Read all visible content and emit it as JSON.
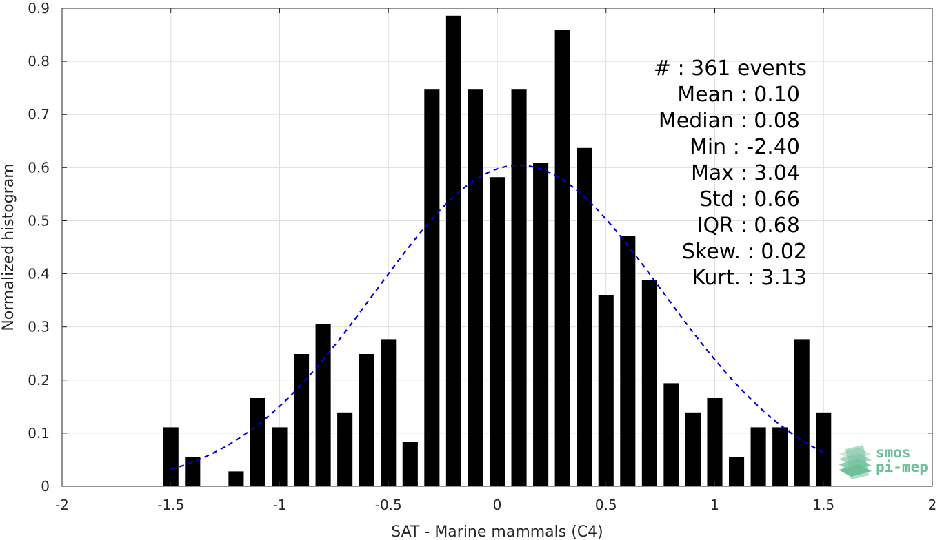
{
  "chart_data": {
    "type": "bar",
    "xlabel": "SAT - Marine mammals (C4)",
    "ylabel": "Normalized histogram",
    "xlim": [
      -2,
      2
    ],
    "ylim": [
      0,
      0.9
    ],
    "grid": true,
    "x_ticks": [
      -2,
      -1.5,
      -1,
      -0.5,
      0,
      0.5,
      1,
      1.5,
      2
    ],
    "x_tick_labels": [
      "-2",
      "-1.5",
      "-1",
      "-0.5",
      "0",
      "0.5",
      "1",
      "1.5",
      "2"
    ],
    "y_ticks": [
      0,
      0.1,
      0.2,
      0.3,
      0.4,
      0.5,
      0.6,
      0.7,
      0.8,
      0.9
    ],
    "y_tick_labels": [
      "0",
      "0.1",
      "0.2",
      "0.3",
      "0.4",
      "0.5",
      "0.6",
      "0.7",
      "0.8",
      "0.9"
    ],
    "bar_color": "#000000",
    "bar_width": 0.07,
    "bars": {
      "x": [
        -1.5,
        -1.4,
        -1.2,
        -1.1,
        -1.0,
        -0.9,
        -0.8,
        -0.7,
        -0.6,
        -0.5,
        -0.4,
        -0.3,
        -0.2,
        -0.1,
        0.0,
        0.1,
        0.2,
        0.3,
        0.4,
        0.5,
        0.6,
        0.7,
        0.8,
        0.9,
        1.0,
        1.1,
        1.2,
        1.3,
        1.4,
        1.5
      ],
      "values": [
        0.111,
        0.055,
        0.028,
        0.166,
        0.111,
        0.249,
        0.305,
        0.139,
        0.249,
        0.277,
        0.083,
        0.748,
        0.886,
        0.748,
        0.582,
        0.748,
        0.609,
        0.859,
        0.637,
        0.36,
        0.471,
        0.388,
        0.194,
        0.139,
        0.166,
        0.055,
        0.111,
        0.111,
        0.277,
        0.139
      ]
    },
    "fit_curve": {
      "style": "dashed",
      "color": "#0000dd",
      "mean": 0.1,
      "std": 0.66,
      "x_range": [
        -1.5,
        1.5
      ]
    },
    "stats": {
      "n": "#  : 361 events",
      "mean": "Mean : 0.10",
      "median": "Median : 0.08",
      "min": "Min : -2.40",
      "max": "Max : 3.04",
      "std": "Std : 0.66",
      "iqr": "IQR : 0.68",
      "skew": "Skew. : 0.02",
      "kurt": "Kurt. : 3.13"
    }
  },
  "logo": {
    "line1": "smos",
    "line2": "pi-mep",
    "color": "#6fbf9a"
  }
}
